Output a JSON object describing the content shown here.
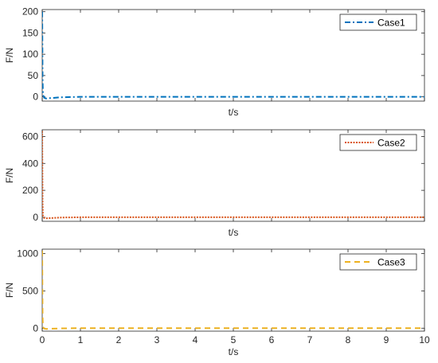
{
  "chart_data": [
    {
      "type": "line",
      "xlabel": "t/s",
      "ylabel": "F/N",
      "xlim": [
        0,
        10
      ],
      "ylim": [
        -10,
        205
      ],
      "yticks": [
        0,
        50,
        100,
        150,
        200
      ],
      "xtick_labels_shown": false,
      "grid": false,
      "legend_position": "top-right",
      "series": [
        {
          "name": "Case1",
          "color": "#0072BD",
          "line_style": "dash-dot",
          "x": [
            0,
            0.005,
            0.01,
            0.02,
            0.05,
            0.1,
            0.2,
            0.5,
            1,
            2,
            4,
            6,
            8,
            10
          ],
          "y": [
            200,
            120,
            40,
            5,
            -2,
            -4,
            -3,
            -1,
            0,
            0,
            0,
            0,
            0,
            0
          ]
        }
      ]
    },
    {
      "type": "line",
      "xlabel": "t/s",
      "ylabel": "F/N",
      "xlim": [
        0,
        10
      ],
      "ylim": [
        -30,
        650
      ],
      "yticks": [
        0,
        200,
        400,
        600
      ],
      "xtick_labels_shown": false,
      "grid": false,
      "legend_position": "top-right",
      "series": [
        {
          "name": "Case2",
          "color": "#D95319",
          "line_style": "dotted",
          "x": [
            0,
            0.005,
            0.01,
            0.02,
            0.05,
            0.1,
            0.2,
            0.5,
            1,
            2,
            4,
            6,
            8,
            10
          ],
          "y": [
            640,
            350,
            100,
            10,
            -5,
            -8,
            -6,
            -2,
            0,
            0,
            0,
            0,
            0,
            0
          ]
        }
      ]
    },
    {
      "type": "line",
      "xlabel": "t/s",
      "ylabel": "F/N",
      "xlim": [
        0,
        10
      ],
      "ylim": [
        -40,
        1060
      ],
      "yticks": [
        0,
        500,
        1000
      ],
      "xticks": [
        0,
        1,
        2,
        3,
        4,
        5,
        6,
        7,
        8,
        9,
        10
      ],
      "xtick_labels_shown": true,
      "grid": false,
      "legend_position": "top-right",
      "series": [
        {
          "name": "Case3",
          "color": "#EDB120",
          "line_style": "dashed",
          "x": [
            0,
            0.005,
            0.01,
            0.02,
            0.05,
            0.1,
            0.2,
            0.5,
            1,
            2,
            4,
            6,
            8,
            10
          ],
          "y": [
            1040,
            600,
            150,
            15,
            -5,
            -10,
            -8,
            -3,
            0,
            0,
            0,
            0,
            0,
            0
          ]
        }
      ]
    }
  ]
}
